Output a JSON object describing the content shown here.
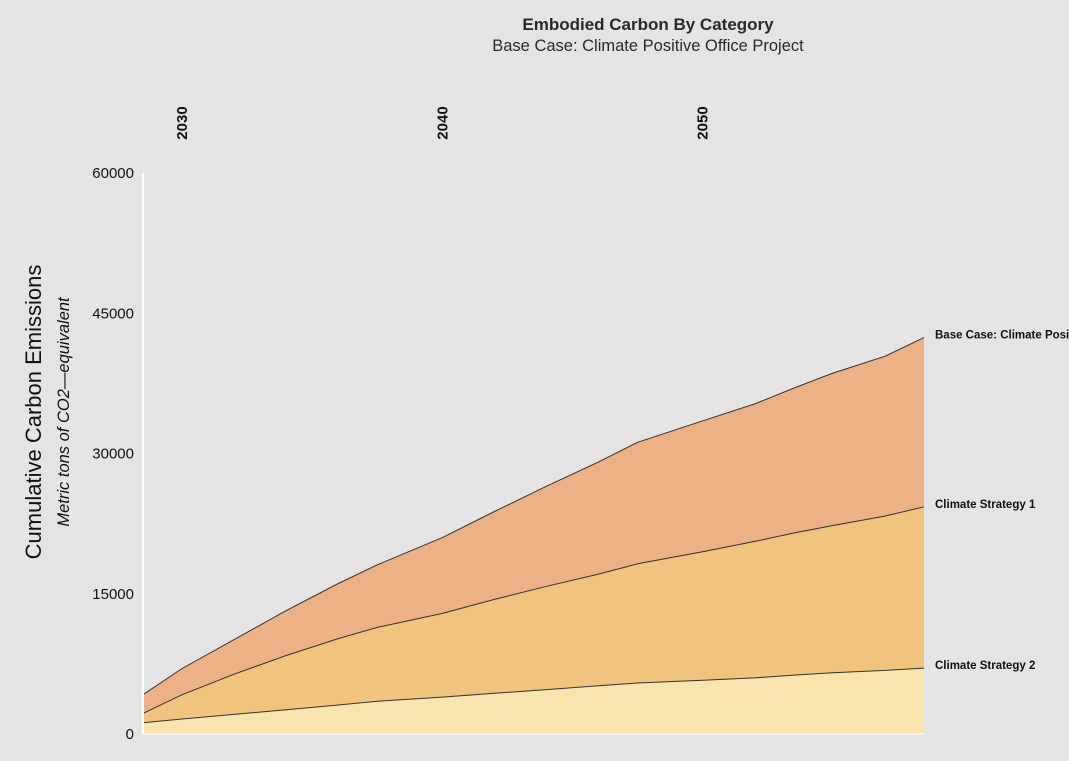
{
  "chart_data": {
    "type": "area",
    "stacked": true,
    "title": "Embodied Carbon By Category",
    "subtitle": "Base Case: Climate Positive Office Project",
    "ylabel": "Cumulative Carbon Emissions",
    "ylabel_sub": "Metric tons of CO2—equivalent",
    "xlabel": "",
    "x_axis_position": "top",
    "x_ticks": [
      "2030",
      "2040",
      "2050"
    ],
    "y_ticks": [
      "0",
      "15000",
      "30000",
      "45000",
      "60000"
    ],
    "ylim": [
      0,
      60000
    ],
    "xlim": [
      2028.5,
      2058.5
    ],
    "grid": false,
    "x": [
      2028.5,
      2030,
      2032,
      2034,
      2036,
      2037.5,
      2040,
      2042,
      2044,
      2046,
      2047.5,
      2050,
      2052,
      2053.5,
      2055,
      2057,
      2058.5
    ],
    "series": [
      {
        "name": "Climate Strategy 2",
        "label": "Climate Strategy 2",
        "color": "#f7e5ad",
        "totals": [
          1200,
          1600,
          2100,
          2600,
          3100,
          3500,
          3950,
          4350,
          4750,
          5150,
          5450,
          5750,
          6000,
          6300,
          6550,
          6800,
          7050
        ]
      },
      {
        "name": "Climate Strategy 1",
        "label": "Climate Strategy 1",
        "color": "#f0c37e",
        "totals": [
          2200,
          4200,
          6400,
          8400,
          10200,
          11400,
          12900,
          14400,
          15800,
          17100,
          18200,
          19500,
          20600,
          21500,
          22300,
          23300,
          24300
        ]
      },
      {
        "name": "Base Case: Climate Positive Office Project",
        "label": "Base Case: Climate Positive Office Project",
        "color": "#ecb184",
        "totals": [
          4200,
          7000,
          10100,
          13200,
          16100,
          18100,
          21000,
          23800,
          26500,
          29100,
          31200,
          33500,
          35300,
          37000,
          38600,
          40400,
          42400
        ]
      }
    ]
  }
}
